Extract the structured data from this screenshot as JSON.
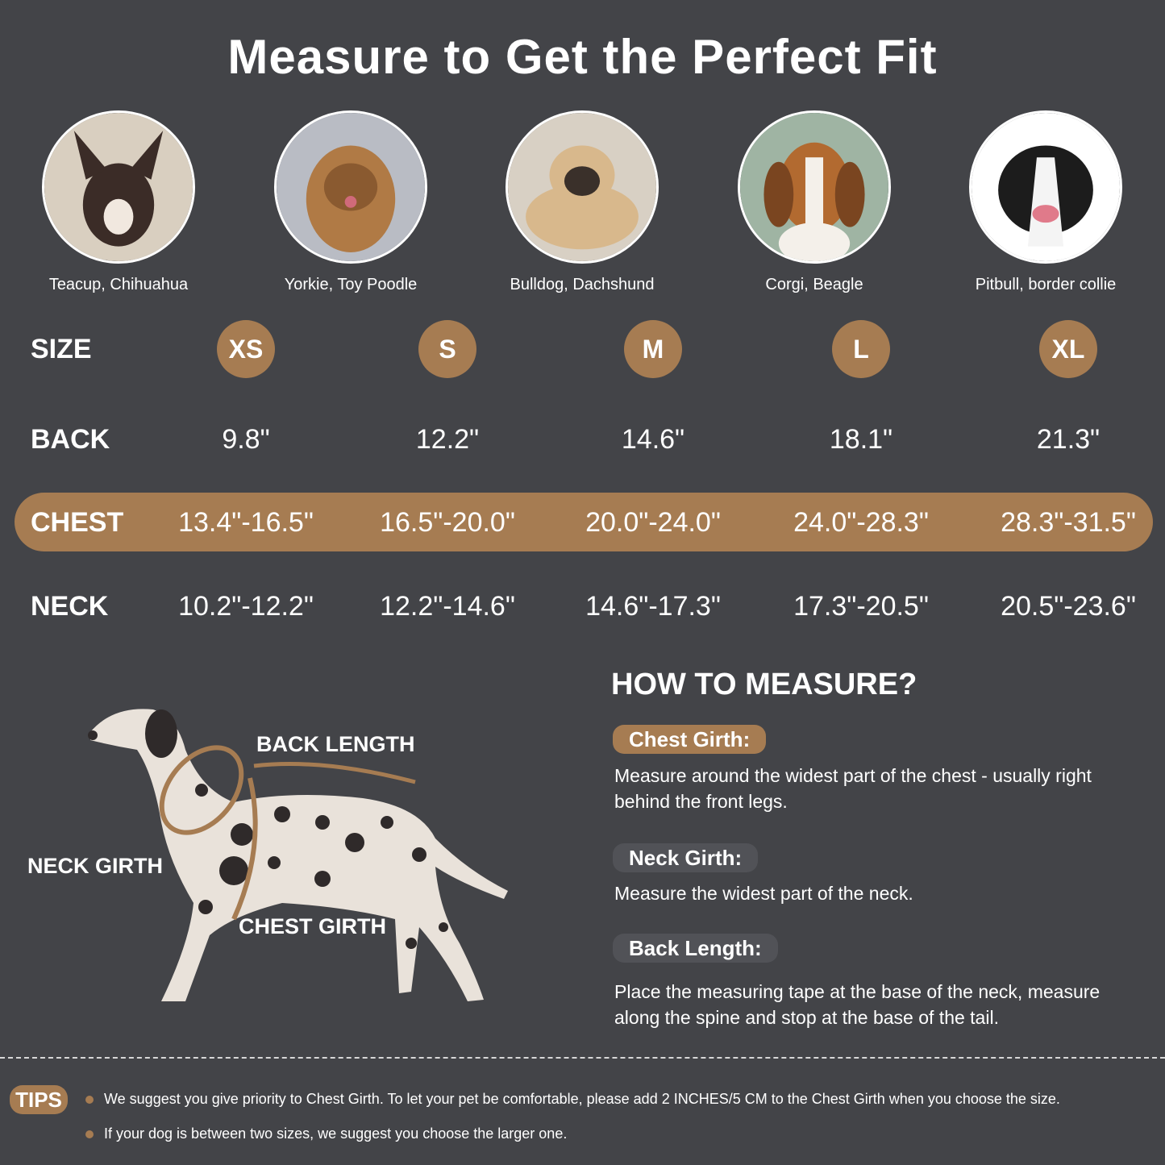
{
  "title": "Measure to Get the Perfect Fit",
  "breeds": [
    "Teacup, Chihuahua",
    "Yorkie, Toy Poodle",
    "Bulldog, Dachshund",
    "Corgi, Beagle",
    "Pitbull, border collie"
  ],
  "table": {
    "row_labels": {
      "size": "SIZE",
      "back": "BACK",
      "chest": "CHEST",
      "neck": "NECK"
    },
    "sizes": [
      "XS",
      "S",
      "M",
      "L",
      "XL"
    ],
    "back": [
      "9.8\"",
      "12.2\"",
      "14.6\"",
      "18.1\"",
      "21.3\""
    ],
    "chest": [
      "13.4\"-16.5\"",
      "16.5\"-20.0\"",
      "20.0\"-24.0\"",
      "24.0\"-28.3\"",
      "28.3\"-31.5\""
    ],
    "neck": [
      "10.2\"-12.2\"",
      "12.2\"-14.6\"",
      "14.6\"-17.3\"",
      "17.3\"-20.5\"",
      "20.5\"-23.6\""
    ]
  },
  "diagram": {
    "back_length": "BACK LENGTH",
    "neck_girth": "NECK GIRTH",
    "chest_girth": "CHEST GIRTH"
  },
  "how_to": {
    "heading": "HOW TO MEASURE?",
    "items": [
      {
        "label": "Chest Girth:",
        "text": "Measure around the widest part of the chest - usually right behind the front legs."
      },
      {
        "label": "Neck Girth:",
        "text": "Measure the widest part of the neck."
      },
      {
        "label": "Back Length:",
        "text": "Place the measuring tape at the base of the neck, measure along the spine and stop at the base of the tail."
      }
    ]
  },
  "tips": {
    "label": "TIPS",
    "items": [
      "We suggest you give priority to Chest Girth. To let your pet be comfortable, please add 2 INCHES/5 CM to the Chest Girth when you choose the size.",
      "If your dog is between two sizes, we suggest you choose the larger one."
    ]
  },
  "colors": {
    "background": "#434448",
    "accent": "#a67c52"
  }
}
